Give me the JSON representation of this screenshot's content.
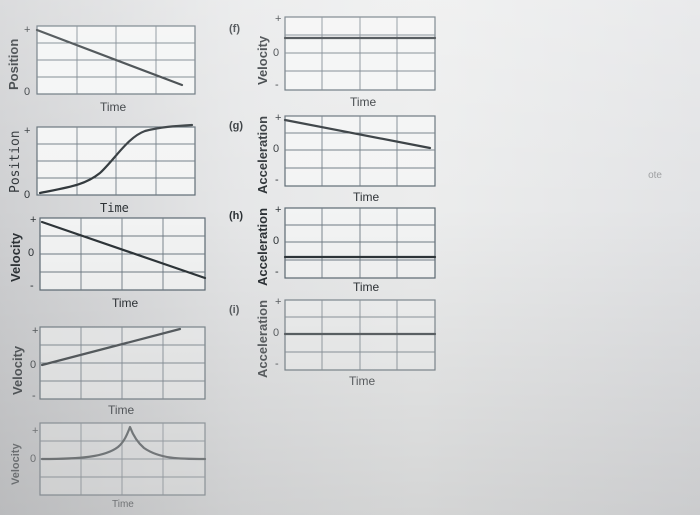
{
  "marker": "ote",
  "panels": [
    {
      "id": "a",
      "letter": "",
      "ylabel": "Position",
      "xlabel": "Time",
      "plus": "+",
      "zero": "0",
      "minus": "",
      "shape": "decreasing-line"
    },
    {
      "id": "b",
      "letter": "",
      "ylabel": "Position",
      "xlabel": "Time",
      "plus": "+",
      "zero": "0",
      "minus": "",
      "shape": "s-curve"
    },
    {
      "id": "c",
      "letter": "",
      "ylabel": "Velocity",
      "xlabel": "Time",
      "plus": "+",
      "zero": "0",
      "minus": "-",
      "shape": "decreasing-line-through-zero"
    },
    {
      "id": "d",
      "letter": "",
      "ylabel": "Velocity",
      "xlabel": "Time",
      "plus": "+",
      "zero": "0",
      "minus": "-",
      "shape": "increasing-line"
    },
    {
      "id": "e",
      "letter": "",
      "ylabel": "Velocity",
      "xlabel": "Time",
      "plus": "+",
      "zero": "0",
      "minus": "-",
      "shape": "cusp-peak"
    },
    {
      "id": "f",
      "letter": "(f)",
      "ylabel": "Velocity",
      "xlabel": "Time",
      "plus": "+",
      "zero": "0",
      "minus": "-",
      "shape": "constant-positive"
    },
    {
      "id": "g",
      "letter": "(g)",
      "ylabel": "Acceleration",
      "xlabel": "Time",
      "plus": "+",
      "zero": "0",
      "minus": "-",
      "shape": "decreasing-to-zero"
    },
    {
      "id": "h",
      "letter": "(h)",
      "ylabel": "Acceleration",
      "xlabel": "Time",
      "plus": "+",
      "zero": "0",
      "minus": "-",
      "shape": "constant-negative"
    },
    {
      "id": "i",
      "letter": "(i)",
      "ylabel": "Acceleration",
      "xlabel": "Time",
      "plus": "+",
      "zero": "0",
      "minus": "-",
      "shape": "constant-zero"
    }
  ]
}
